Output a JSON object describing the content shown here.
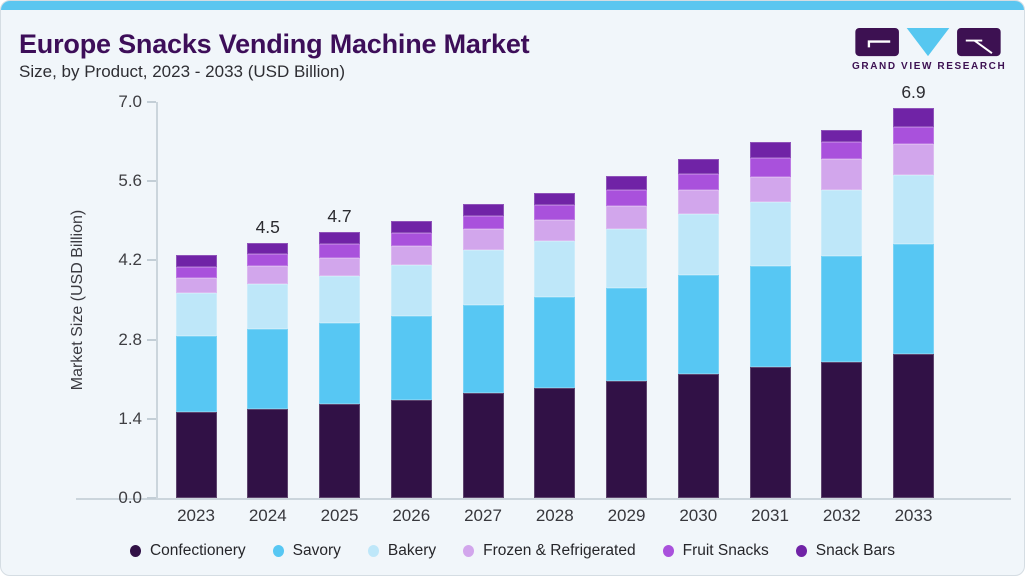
{
  "header": {
    "title": "Europe Snacks Vending Machine Market",
    "subtitle": "Size, by Product, 2023 - 2033 (USD Billion)",
    "brand": "GRAND VIEW RESEARCH"
  },
  "chart_data": {
    "type": "bar",
    "stacked": true,
    "title": "Europe Snacks Vending Machine Market Size, by Product, 2023 - 2033 (USD Billion)",
    "ylabel": "Market Size (USD Billion)",
    "xlabel": "",
    "ylim": [
      0,
      7
    ],
    "yticks": [
      "0.0",
      "1.4",
      "2.8",
      "4.2",
      "5.6",
      "7.0"
    ],
    "grid": false,
    "legend_position": "bottom",
    "categories": [
      "2023",
      "2024",
      "2025",
      "2026",
      "2027",
      "2028",
      "2029",
      "2030",
      "2031",
      "2032",
      "2033"
    ],
    "series": [
      {
        "name": "Confectionery",
        "color": "#311146",
        "values": [
          1.52,
          1.58,
          1.67,
          1.74,
          1.85,
          1.95,
          2.06,
          2.2,
          2.31,
          2.4,
          2.55
        ]
      },
      {
        "name": "Savory",
        "color": "#57C7F3",
        "values": [
          1.34,
          1.41,
          1.42,
          1.48,
          1.56,
          1.61,
          1.66,
          1.74,
          1.8,
          1.88,
          1.94
        ]
      },
      {
        "name": "Bakery",
        "color": "#BEE7F9",
        "values": [
          0.76,
          0.79,
          0.83,
          0.9,
          0.98,
          0.98,
          1.04,
          1.08,
          1.12,
          1.16,
          1.22
        ]
      },
      {
        "name": "Frozen & Refrigerated",
        "color": "#D2A6EC",
        "values": [
          0.27,
          0.33,
          0.33,
          0.33,
          0.36,
          0.38,
          0.4,
          0.42,
          0.45,
          0.55,
          0.54
        ]
      },
      {
        "name": "Fruit Snacks",
        "color": "#A951DC",
        "values": [
          0.2,
          0.2,
          0.24,
          0.24,
          0.24,
          0.26,
          0.28,
          0.29,
          0.33,
          0.31,
          0.3
        ]
      },
      {
        "name": "Snack Bars",
        "color": "#7023A6",
        "values": [
          0.21,
          0.19,
          0.21,
          0.21,
          0.21,
          0.22,
          0.26,
          0.27,
          0.29,
          0.2,
          0.35
        ]
      }
    ],
    "totals": [
      4.3,
      4.5,
      4.7,
      4.9,
      5.2,
      5.4,
      5.7,
      6.0,
      6.3,
      6.5,
      6.9
    ],
    "total_labels": [
      "",
      "4.5",
      "4.7",
      "",
      "",
      "",
      "",
      "",
      "",
      "",
      "6.9"
    ]
  },
  "theme": {
    "accent_blue": "#5BC6F0",
    "title_purple": "#3D0E59",
    "background": "#F1F6FA",
    "axis_line": "#CBD5DC"
  }
}
